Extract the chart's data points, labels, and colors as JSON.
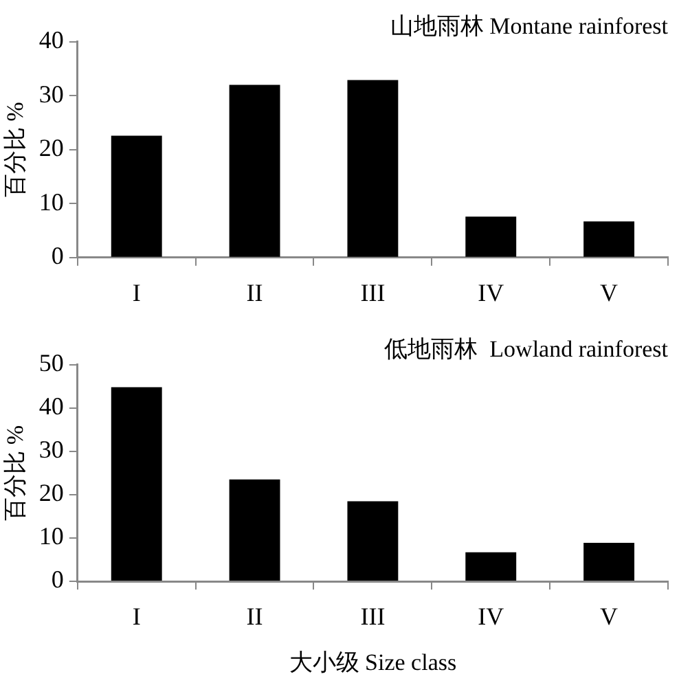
{
  "chart_data": [
    {
      "type": "bar",
      "title": "山地雨林 Montane rainforest",
      "ylabel": "百分比 %",
      "categories": [
        "I",
        "II",
        "III",
        "IV",
        "V"
      ],
      "values": [
        22.6,
        32.0,
        32.9,
        7.6,
        6.7
      ],
      "color": "#000000",
      "ylim": [
        0,
        40
      ],
      "yticks": [
        0,
        10,
        20,
        30,
        40
      ],
      "grid": false,
      "legend": false
    },
    {
      "type": "bar",
      "title": "低地雨林  Lowland rainforest",
      "ylabel": "百分比 %",
      "xlabel": "大小级 Size class",
      "categories": [
        "I",
        "II",
        "III",
        "IV",
        "V"
      ],
      "values": [
        44.8,
        23.5,
        18.5,
        6.7,
        8.9
      ],
      "color": "#000000",
      "ylim": [
        0,
        50
      ],
      "yticks": [
        0,
        10,
        20,
        30,
        40,
        50
      ],
      "grid": false,
      "legend": false
    }
  ]
}
